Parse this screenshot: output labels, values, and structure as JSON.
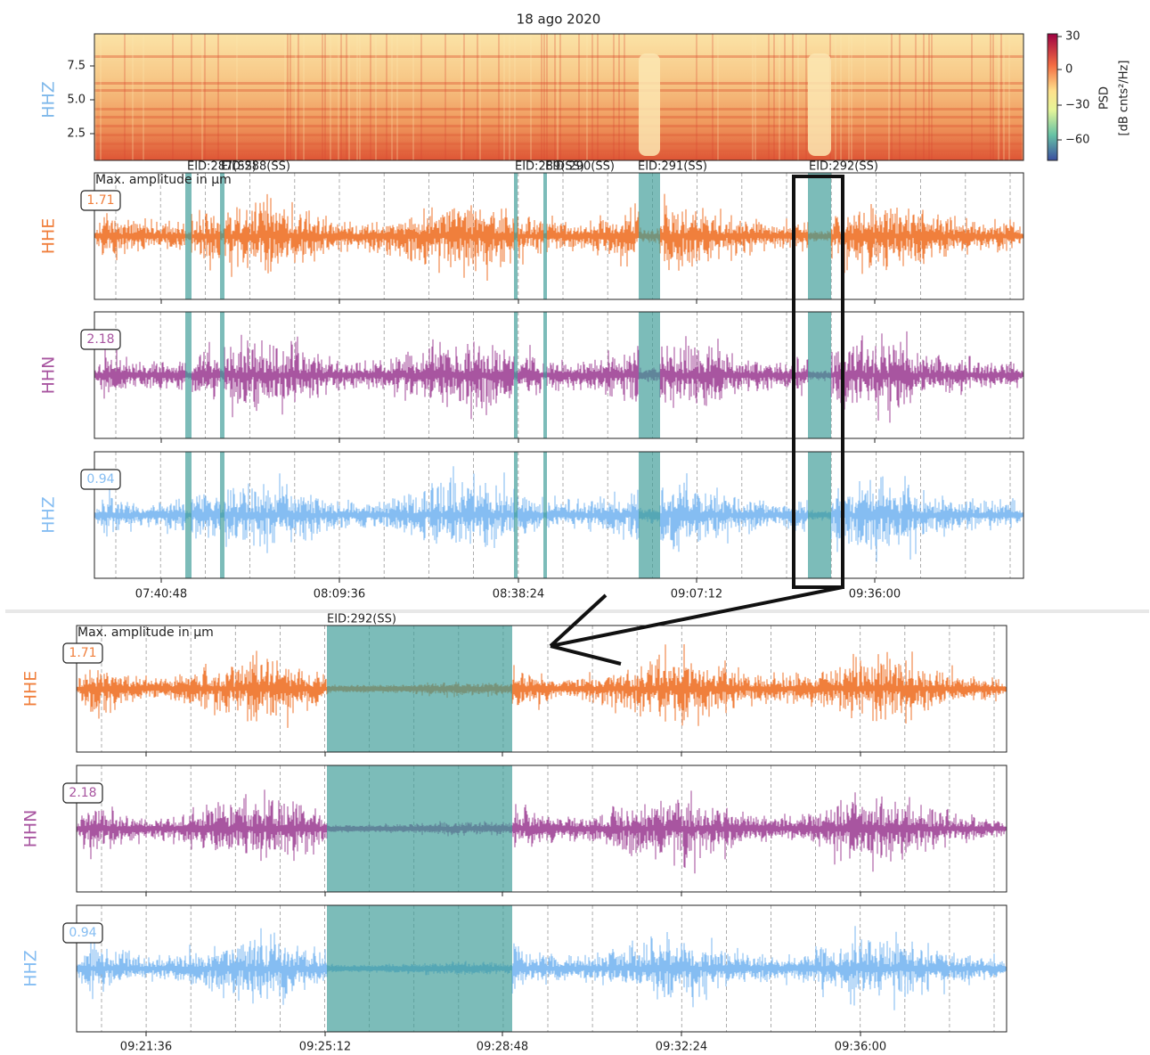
{
  "title": "18 ago 2020",
  "spectrogram": {
    "ylabel": "HHZ",
    "yticks": [
      "7.5",
      "5.0",
      "2.5"
    ],
    "colorbar": {
      "ticks": [
        "30",
        "0",
        "−30",
        "−60"
      ],
      "label": "PSD",
      "unit": "[dB cnts²/Hz]"
    }
  },
  "overview": {
    "amplitude_caption": "Max. amplitude in μm",
    "events": [
      "EID:287(SS)",
      "EID:288(SS)",
      "EID:289(SS)",
      "EID:290(SS)",
      "EID:291(SS)",
      "EID:292(SS)"
    ],
    "channels": [
      {
        "name": "HHE",
        "max": "1.71"
      },
      {
        "name": "HHN",
        "max": "2.18"
      },
      {
        "name": "HHZ",
        "max": "0.94"
      }
    ],
    "xticks": [
      "07:40:48",
      "08:09:36",
      "08:38:24",
      "09:07:12",
      "09:36:00"
    ]
  },
  "zoom": {
    "amplitude_caption": "Max. amplitude in μm",
    "event": "EID:292(SS)",
    "channels": [
      {
        "name": "HHE",
        "max": "1.71"
      },
      {
        "name": "HHN",
        "max": "2.18"
      },
      {
        "name": "HHZ",
        "max": "0.94"
      }
    ],
    "xticks": [
      "09:21:36",
      "09:25:12",
      "09:28:48",
      "09:32:24",
      "09:36:00"
    ]
  }
}
